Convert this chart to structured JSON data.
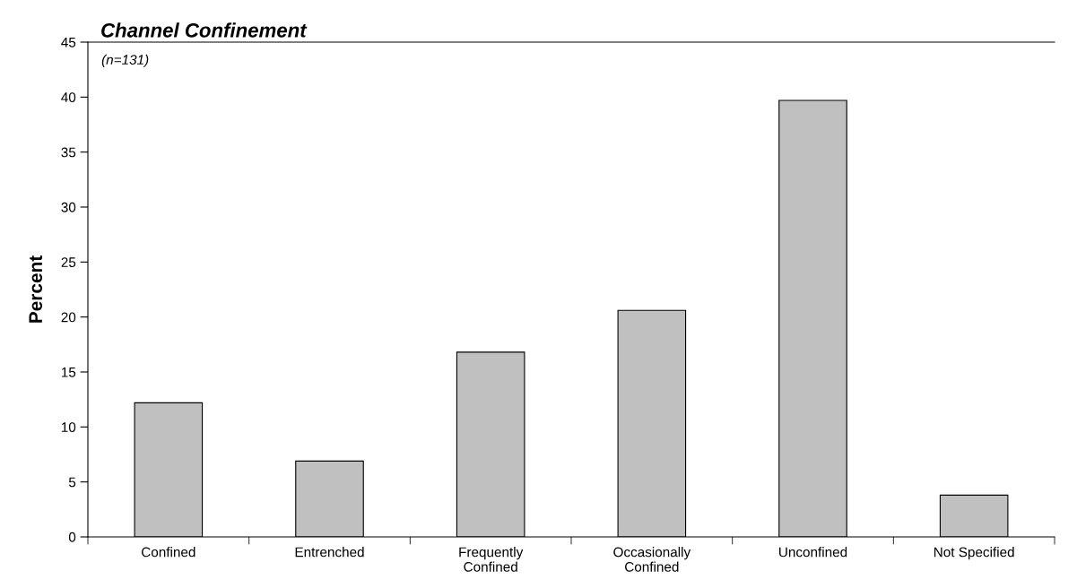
{
  "chart_data": {
    "type": "bar",
    "title": "Channel Confinement",
    "ylabel": "Percent",
    "annotations": [
      "(n=131)"
    ],
    "categories": [
      "Confined",
      "Entrenched",
      "Frequently\nConfined",
      "Occasionally\nConfined",
      "Unconfined",
      "Not Specified"
    ],
    "values": [
      12.2,
      6.9,
      16.8,
      20.6,
      39.7,
      3.8
    ],
    "color": "#c0c0c0",
    "ylim": [
      0,
      45
    ],
    "yticks": [
      0,
      5,
      10,
      15,
      20,
      25,
      30,
      35,
      40,
      45
    ],
    "grid": false,
    "legend": false
  }
}
